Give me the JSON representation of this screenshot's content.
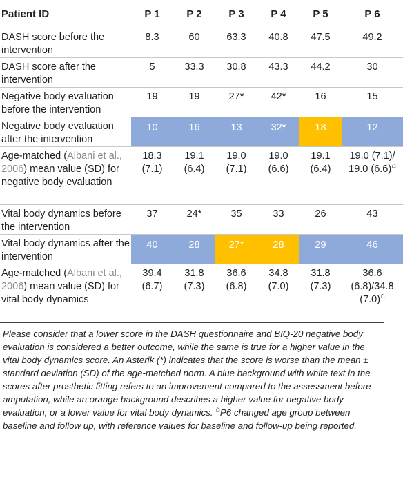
{
  "header": [
    "Patient ID",
    "P 1",
    "P 2",
    "P 3",
    "P 4",
    "P 5",
    "P 6"
  ],
  "rows": [
    {
      "label": "DASH score before the intervention",
      "values": [
        "8.3",
        "60",
        "63.3",
        "40.8",
        "47.5",
        "49.2"
      ]
    },
    {
      "label": "DASH score after the intervention",
      "values": [
        "5",
        "33.3",
        "30.8",
        "43.3",
        "44.2",
        "30"
      ]
    },
    {
      "label": "Negative body evaluation before the intervention",
      "values": [
        "19",
        "19",
        "27*",
        "42*",
        "16",
        "15"
      ]
    },
    {
      "label": "Negative body evaluation after the intervention",
      "values": [
        "10",
        "16",
        "13",
        "32*",
        "18",
        "12"
      ]
    },
    {
      "label_pre": "Age-matched (",
      "label_ref": "Albani et al., 2006",
      "label_post": ") mean value (SD) for negative body evaluation",
      "values": [
        "18.3 (7.1)",
        "19.1 (6.4)",
        "19.0 (7.1)",
        "19.0 (6.6)",
        "19.1 (6.4)",
        "19.0 (7.1)/ 19.0 (6.6)"
      ],
      "p6_symbol": "⌂"
    },
    {
      "label": "Vital body dynamics before the intervention",
      "values": [
        "37",
        "24*",
        "35",
        "33",
        "26",
        "43"
      ]
    },
    {
      "label": "Vital body dynamics after the intervention",
      "values": [
        "40",
        "28",
        "27*",
        "28",
        "29",
        "46"
      ]
    },
    {
      "label_pre": "Age-matched (",
      "label_ref": "Albani et al., 2006",
      "label_post": ") mean value (SD) for vital body dynamics",
      "values": [
        "39.4 (6.7)",
        "31.8 (7.3)",
        "36.6 (6.8)",
        "34.8 (7.0)",
        "31.8 (7.3)",
        "36.6 (6.8)/34.8 (7.0)"
      ],
      "p6_symbol": "⌂"
    }
  ],
  "colors": {
    "improvement_bg": "#8eaadb",
    "worse_bg": "#ffc000",
    "reference_link": "#8a8a8a"
  },
  "footnote_main": "Please consider that a lower score in the DASH questionnaire and BIQ-20 negative body evaluation is considered a better outcome, while the same is true for a higher value in the vital body dynamics score. An Asterik (*) indicates that the score is worse than the mean ± standard deviation (SD) of the age-matched norm. A blue background with white text in the scores after prosthetic fitting refers to an improvement compared to the assessment before amputation, while an orange background describes a higher value for negative body evaluation, or a lower value for vital body dynamics. ",
  "footnote_symbol": "⌂",
  "footnote_tail": "P6 changed age group between baseline and follow up, with reference values for baseline and follow-up being reported."
}
